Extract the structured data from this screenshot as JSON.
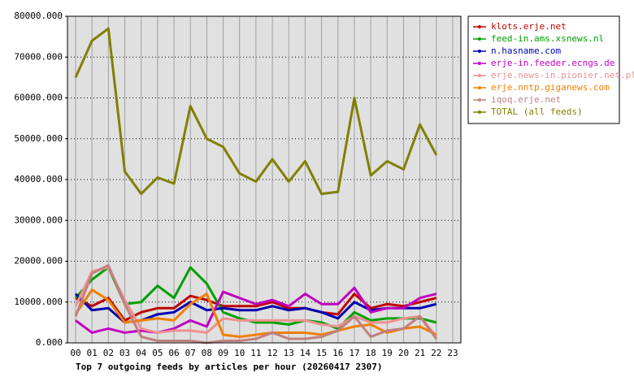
{
  "chart_data": {
    "type": "line",
    "title": "Top 7 outgoing feeds by articles per hour (20260417 2307)",
    "categories": [
      "00",
      "01",
      "02",
      "03",
      "04",
      "05",
      "06",
      "07",
      "08",
      "09",
      "10",
      "11",
      "12",
      "13",
      "14",
      "15",
      "16",
      "17",
      "18",
      "19",
      "20",
      "21",
      "22",
      "23"
    ],
    "ylim": [
      0,
      80000
    ],
    "yticks": [
      {
        "value": 0,
        "label": "0.000"
      },
      {
        "value": 10000,
        "label": "10000.000"
      },
      {
        "value": 20000,
        "label": "20000.000"
      },
      {
        "value": 30000,
        "label": "30000.000"
      },
      {
        "value": 40000,
        "label": "40000.000"
      },
      {
        "value": 50000,
        "label": "50000.000"
      },
      {
        "value": 60000,
        "label": "60000.000"
      },
      {
        "value": 70000,
        "label": "70000.000"
      },
      {
        "value": 80000,
        "label": "80000.000"
      }
    ],
    "grid": true,
    "legend": "right",
    "series": [
      {
        "name": "klots.erje.net",
        "color": "#c00000",
        "values": [
          11000,
          9000,
          11000,
          5500,
          7500,
          8500,
          8500,
          11500,
          10500,
          9000,
          9000,
          9000,
          10000,
          8500,
          8500,
          7500,
          7000,
          12000,
          8500,
          9500,
          9000,
          10000,
          11000,
          null
        ]
      },
      {
        "name": "feed-in.ams.xsnews.nl",
        "color": "#00a000",
        "values": [
          11000,
          15500,
          18500,
          9500,
          10000,
          14000,
          11000,
          18500,
          14500,
          7500,
          6000,
          5000,
          5000,
          4500,
          5500,
          5000,
          3500,
          7500,
          5500,
          6000,
          6000,
          6000,
          5000,
          null
        ]
      },
      {
        "name": "n.hasname.com",
        "color": "#0000b0",
        "values": [
          12000,
          8000,
          8500,
          5000,
          5500,
          7000,
          7500,
          10000,
          8000,
          8500,
          8000,
          8000,
          9000,
          8000,
          8500,
          7500,
          6000,
          10000,
          8000,
          8500,
          8500,
          8500,
          9500,
          null
        ]
      },
      {
        "name": "erje-in.feeder.ecngs.de",
        "color": "#c000c0",
        "values": [
          5500,
          2500,
          3500,
          2500,
          3000,
          2500,
          3500,
          5500,
          4000,
          12500,
          11000,
          9500,
          10500,
          9000,
          12000,
          9500,
          9500,
          13500,
          7500,
          8500,
          8500,
          11000,
          12000,
          null
        ]
      },
      {
        "name": "erje.news-in.pionier.net.pl",
        "color": "#f09090",
        "values": [
          9000,
          17500,
          18500,
          10500,
          3500,
          2500,
          3000,
          3000,
          2500,
          6000,
          5500,
          5500,
          5500,
          5500,
          5500,
          4500,
          4000,
          6500,
          5000,
          5000,
          6000,
          6500,
          1500,
          null
        ]
      },
      {
        "name": "erje.nntp.giganews.com",
        "color": "#f08000",
        "values": [
          7000,
          13000,
          10500,
          5000,
          5500,
          6000,
          5500,
          9500,
          12000,
          2000,
          1500,
          2000,
          2500,
          2500,
          2500,
          2000,
          3000,
          4000,
          4500,
          2500,
          3500,
          4000,
          2000,
          null
        ]
      },
      {
        "name": "iqoq.erje.net",
        "color": "#c08080",
        "values": [
          6500,
          17000,
          19000,
          9500,
          1500,
          500,
          500,
          500,
          0,
          500,
          500,
          1000,
          2500,
          1000,
          1000,
          1500,
          3000,
          6500,
          1500,
          3000,
          3500,
          6500,
          1000,
          null
        ]
      },
      {
        "name": "TOTAL (all feeds)",
        "color": "#808000",
        "values": [
          65000,
          74000,
          77000,
          42000,
          36500,
          40500,
          39000,
          58000,
          50000,
          48000,
          41500,
          39500,
          45000,
          39500,
          44500,
          36500,
          37000,
          60000,
          41000,
          44500,
          42500,
          53500,
          46000,
          null
        ]
      }
    ]
  }
}
